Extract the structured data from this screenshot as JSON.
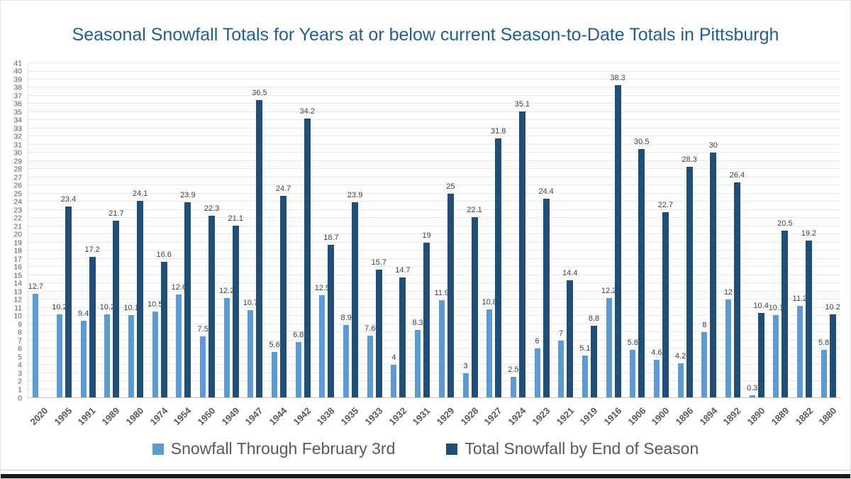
{
  "title": "Seasonal Snowfall Totals for Years at or below current Season-to-Date Totals in Pittsburgh",
  "colors": {
    "light_series": "#5B9BD5",
    "dark_series": "#1F4E79",
    "title_text": "#1E5C9B",
    "gridline": "#E8E8E8",
    "axis_text": "#595959",
    "data_label_text": "#404040"
  },
  "chart_data": {
    "type": "bar",
    "title": "Seasonal Snowfall Totals for Years at or below current Season-to-Date Totals in Pittsburgh",
    "categories": [
      "2020",
      "1995",
      "1991",
      "1989",
      "1980",
      "1974",
      "1954",
      "1950",
      "1949",
      "1947",
      "1944",
      "1942",
      "1938",
      "1935",
      "1933",
      "1932",
      "1931",
      "1929",
      "1928",
      "1927",
      "1924",
      "1923",
      "1921",
      "1919",
      "1916",
      "1906",
      "1900",
      "1896",
      "1894",
      "1892",
      "1890",
      "1889",
      "1882",
      "1880"
    ],
    "series": [
      {
        "name": "Snowfall Through February 3rd",
        "color": "#5B9BD5",
        "values": [
          12.7,
          10.2,
          9.4,
          10.2,
          10.1,
          10.5,
          12.6,
          7.5,
          12.2,
          10.7,
          5.6,
          6.8,
          12.5,
          8.9,
          7.6,
          4,
          8.3,
          11.9,
          3,
          10.8,
          2.5,
          6,
          7,
          5.1,
          12.2,
          5.8,
          4.6,
          4.2,
          8,
          12,
          0.3,
          10.1,
          11.2,
          5.8
        ]
      },
      {
        "name": "Total Snowfall by End of Season",
        "color": "#1F4E79",
        "values": [
          null,
          23.4,
          17.2,
          21.7,
          24.1,
          16.6,
          23.9,
          22.3,
          21.1,
          36.5,
          24.7,
          34.2,
          18.7,
          23.9,
          15.7,
          14.7,
          19,
          25,
          22.1,
          31.8,
          35.1,
          24.4,
          14.4,
          8.8,
          38.3,
          30.5,
          22.7,
          28.3,
          30,
          26.4,
          10.4,
          20.5,
          19.2,
          10.2
        ]
      }
    ],
    "xlabel": "",
    "ylabel": "",
    "ylim": [
      0,
      41
    ],
    "ytick_step": 1,
    "grid": true,
    "legend_position": "bottom",
    "data_labels": true
  }
}
